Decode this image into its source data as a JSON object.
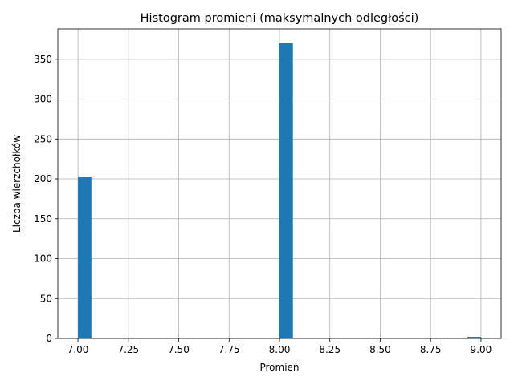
{
  "chart_data": {
    "type": "bar",
    "title": "Histogram promieni (maksymalnych odległości)",
    "xlabel": "Promień",
    "ylabel": "Liczba wierzchołków",
    "xlim": [
      6.9,
      9.1
    ],
    "ylim": [
      0,
      388
    ],
    "grid": true,
    "bar_color": "#1f77b4",
    "bin_width": 0.0667,
    "bins": [
      {
        "x0": 7.0,
        "x1": 7.0667,
        "value": 202
      },
      {
        "x0": 8.0,
        "x1": 8.0667,
        "value": 370
      },
      {
        "x0": 8.9333,
        "x1": 9.0,
        "value": 2
      }
    ],
    "x_ticks": [
      7.0,
      7.25,
      7.5,
      7.75,
      8.0,
      8.25,
      8.5,
      8.75,
      9.0
    ],
    "x_tick_labels": [
      "7.00",
      "7.25",
      "7.50",
      "7.75",
      "8.00",
      "8.25",
      "8.50",
      "8.75",
      "9.00"
    ],
    "y_ticks": [
      0,
      50,
      100,
      150,
      200,
      250,
      300,
      350
    ],
    "y_tick_labels": [
      "0",
      "50",
      "100",
      "150",
      "200",
      "250",
      "300",
      "350"
    ]
  }
}
